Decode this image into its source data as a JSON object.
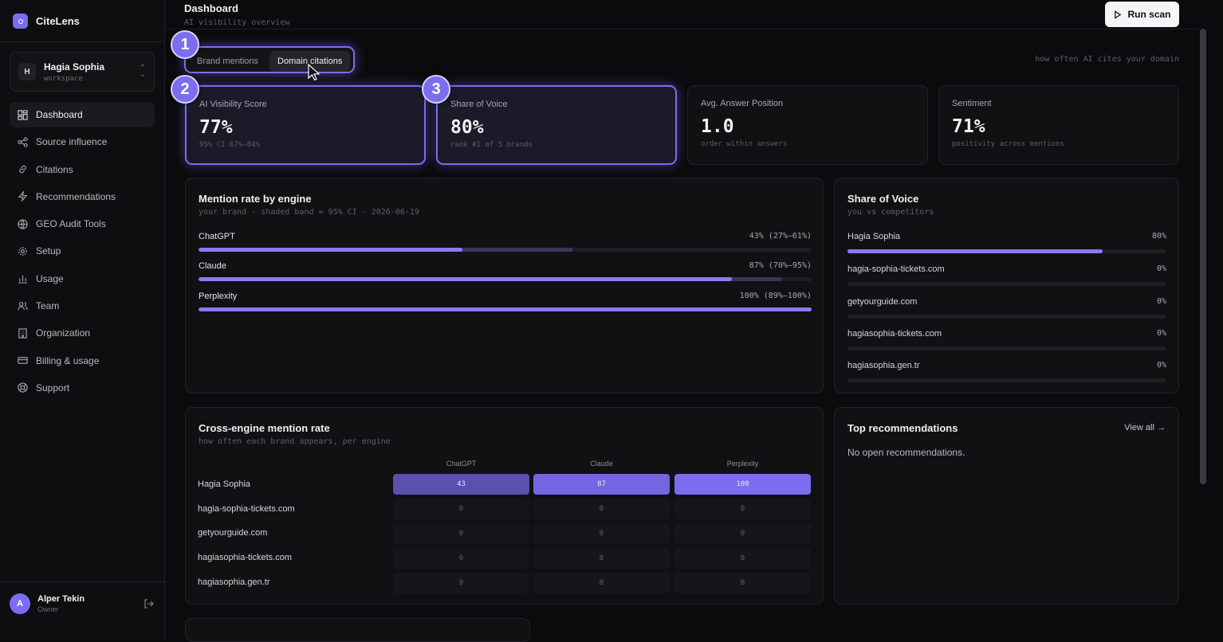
{
  "app": {
    "name": "CiteLens"
  },
  "workspace": {
    "initial": "H",
    "name": "Hagia Sophia",
    "sub": "workspace"
  },
  "nav": [
    {
      "label": "Dashboard",
      "icon": "dashboard-icon",
      "active": true
    },
    {
      "label": "Source influence",
      "icon": "share-nodes-icon"
    },
    {
      "label": "Citations",
      "icon": "link-icon"
    },
    {
      "label": "Recommendations",
      "icon": "lightning-icon"
    },
    {
      "label": "GEO Audit Tools",
      "icon": "globe-icon"
    },
    {
      "label": "Setup",
      "icon": "gear-icon"
    },
    {
      "label": "Usage",
      "icon": "bar-chart-icon"
    },
    {
      "label": "Team",
      "icon": "users-icon"
    },
    {
      "label": "Organization",
      "icon": "building-icon"
    },
    {
      "label": "Billing & usage",
      "icon": "credit-card-icon"
    },
    {
      "label": "Support",
      "icon": "lifebuoy-icon"
    }
  ],
  "user": {
    "initial": "A",
    "name": "Alper Tekin",
    "role": "Owner"
  },
  "header": {
    "title": "Dashboard",
    "subtitle": "AI visibility overview",
    "run_scan": "Run scan"
  },
  "toggle": {
    "options": [
      "Brand mentions",
      "Domain citations"
    ],
    "selected": "Domain citations",
    "hint": "how often AI cites your domain"
  },
  "badges": [
    "1",
    "2",
    "3"
  ],
  "stats": [
    {
      "label": "AI Visibility Score",
      "value": "77%",
      "sub": "95% CI 67%–84%"
    },
    {
      "label": "Share of Voice",
      "value": "80%",
      "sub": "rank #1 of 5 brands"
    },
    {
      "label": "Avg. Answer Position",
      "value": "1.0",
      "sub": "order within answers"
    },
    {
      "label": "Sentiment",
      "value": "71%",
      "sub": "positivity across mentions"
    }
  ],
  "mention_rate": {
    "title": "Mention rate by engine",
    "subtitle": "your brand · shaded band = 95% CI · 2026-06-19",
    "rows": [
      {
        "engine": "ChatGPT",
        "value": 43,
        "ci_low": 27,
        "ci_high": 61,
        "label": "43% (27%–61%)"
      },
      {
        "engine": "Claude",
        "value": 87,
        "ci_low": 70,
        "ci_high": 95,
        "label": "87% (70%–95%)"
      },
      {
        "engine": "Perplexity",
        "value": 100,
        "ci_low": 89,
        "ci_high": 100,
        "label": "100% (89%–100%)"
      }
    ]
  },
  "share_of_voice": {
    "title": "Share of Voice",
    "subtitle": "you vs competitors",
    "rows": [
      {
        "name": "Hagia Sophia",
        "value": 80,
        "label": "80%"
      },
      {
        "name": "hagia-sophia-tickets.com",
        "value": 0,
        "label": "0%"
      },
      {
        "name": "getyourguide.com",
        "value": 0,
        "label": "0%"
      },
      {
        "name": "hagiasophia-tickets.com",
        "value": 0,
        "label": "0%"
      },
      {
        "name": "hagiasophia.gen.tr",
        "value": 0,
        "label": "0%"
      }
    ]
  },
  "cross_engine": {
    "title": "Cross-engine mention rate",
    "subtitle": "how often each brand appears, per engine",
    "columns": [
      "ChatGPT",
      "Claude",
      "Perplexity"
    ],
    "rows": [
      {
        "name": "Hagia Sophia",
        "values": [
          43,
          87,
          100
        ]
      },
      {
        "name": "hagia-sophia-tickets.com",
        "values": [
          0,
          0,
          0
        ]
      },
      {
        "name": "getyourguide.com",
        "values": [
          0,
          0,
          0
        ]
      },
      {
        "name": "hagiasophia-tickets.com",
        "values": [
          0,
          0,
          0
        ]
      },
      {
        "name": "hagiasophia.gen.tr",
        "values": [
          0,
          0,
          0
        ]
      }
    ]
  },
  "recommendations": {
    "title": "Top recommendations",
    "view_all": "View all →",
    "empty": "No open recommendations."
  },
  "colors": {
    "accent": "#7c6cf0",
    "bar": "#8a7af5",
    "background": "#0b0b0d"
  }
}
